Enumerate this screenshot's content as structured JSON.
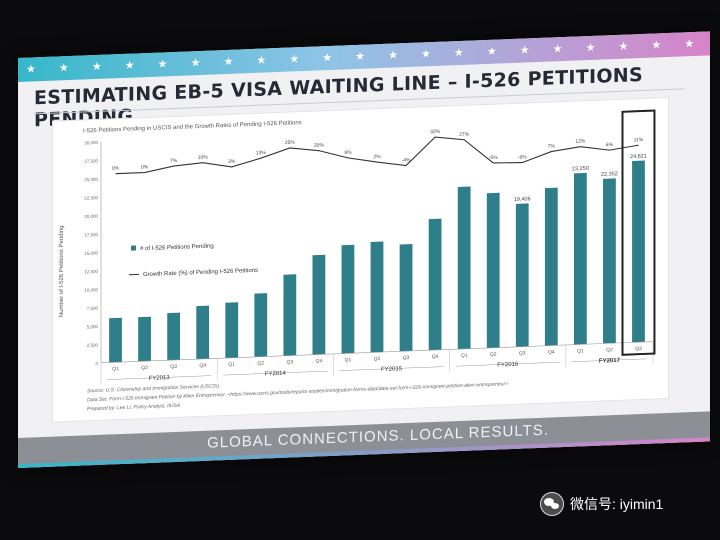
{
  "slide": {
    "title": "ESTIMATING EB-5 VISA WAITING LINE – I-526 PETITIONS PENDING",
    "footer": "GLOBAL CONNECTIONS. LOCAL RESULTS.",
    "stars": "★ ★ ★ ★ ★ ★ ★ ★ ★ ★ ★ ★ ★ ★ ★ ★ ★ ★ ★ ★ ★ ★ ★ ★ ★ ★ ★ ★ ★ ★ ★ ★"
  },
  "watermark": {
    "text": "微信号: iyimin1"
  },
  "chart_data": {
    "type": "bar",
    "title": "I-526 Petitions Pending in USCIS and the Growth Rates of Pending I-526 Petitions",
    "ylabel": "Number of I-526 Petitions Pending",
    "ylim": [
      0,
      30000
    ],
    "yticks": [
      0,
      2500,
      5000,
      7500,
      10000,
      12500,
      15000,
      17500,
      20000,
      22500,
      25000,
      27500,
      30000
    ],
    "ytick_labels": [
      "0",
      "2,500",
      "5,000",
      "7,500",
      "10,000",
      "12,500",
      "15,000",
      "17,500",
      "20,000",
      "22,500",
      "25,000",
      "27,500",
      "30,000"
    ],
    "categories": [
      "Q1",
      "Q2",
      "Q3",
      "Q4",
      "Q1",
      "Q2",
      "Q3",
      "Q4",
      "Q1",
      "Q2",
      "Q3",
      "Q4",
      "Q1",
      "Q2",
      "Q3",
      "Q4",
      "Q1",
      "Q2",
      "Q3"
    ],
    "fiscal_years": [
      {
        "label": "FY2013",
        "start": 0,
        "end": 3
      },
      {
        "label": "FY2014",
        "start": 4,
        "end": 7
      },
      {
        "label": "FY2015",
        "start": 8,
        "end": 11
      },
      {
        "label": "FY2016",
        "start": 12,
        "end": 15
      },
      {
        "label": "FY2017",
        "start": 16,
        "end": 18
      }
    ],
    "series": [
      {
        "name": "# of I-526 Petitions Pending",
        "type": "bar",
        "color": "#2e7f8a",
        "values": [
          6000,
          6000,
          6400,
          7200,
          7500,
          8600,
          11000,
          13500,
          14700,
          15000,
          14500,
          17800,
          22000,
          21000,
          19406,
          21400,
          23250,
          22352,
          24621
        ],
        "labels": [
          "",
          "",
          "",
          "",
          "",
          "",
          "",
          "",
          "",
          "",
          "",
          "",
          "",
          "",
          "19,406",
          "",
          "23,250",
          "22,352",
          "24,621"
        ]
      },
      {
        "name": "Growth Rate (%) of Pending I-526 Petitions",
        "type": "line",
        "color": "#333333",
        "values": [
          0,
          0,
          7,
          10,
          3,
          13,
          25,
          20,
          9,
          2,
          -4,
          32,
          27,
          -5,
          -6,
          7,
          12,
          6,
          11
        ],
        "labels": [
          "0%",
          "0%",
          "7%",
          "10%",
          "3%",
          "13%",
          "25%",
          "20%",
          "9%",
          "2%",
          "-4%",
          "32%",
          "27%",
          "-5%",
          "-6%",
          "7%",
          "12%",
          "6%",
          "11%"
        ]
      }
    ],
    "legend": [
      "# of I-526 Petitions Pending",
      "Growth Rate (%) of Pending I-526 Petitions"
    ],
    "legend_position": "left-middle",
    "grid": false,
    "highlight_index": 18,
    "notes": [
      "Source: U.S. Citizenship and Immigration Services (USCIS).",
      "Data Set: Form I-526 Immigrant Petition by Alien Entrepreneur. <https://www.uscis.gov/tools/reports-studies/immigration-forms-data/data-set-form-i-526-immigrant-petition-alien-entrepreneur>",
      "Prepared by: Lee Li, Policy Analyst, IIUSA"
    ]
  }
}
